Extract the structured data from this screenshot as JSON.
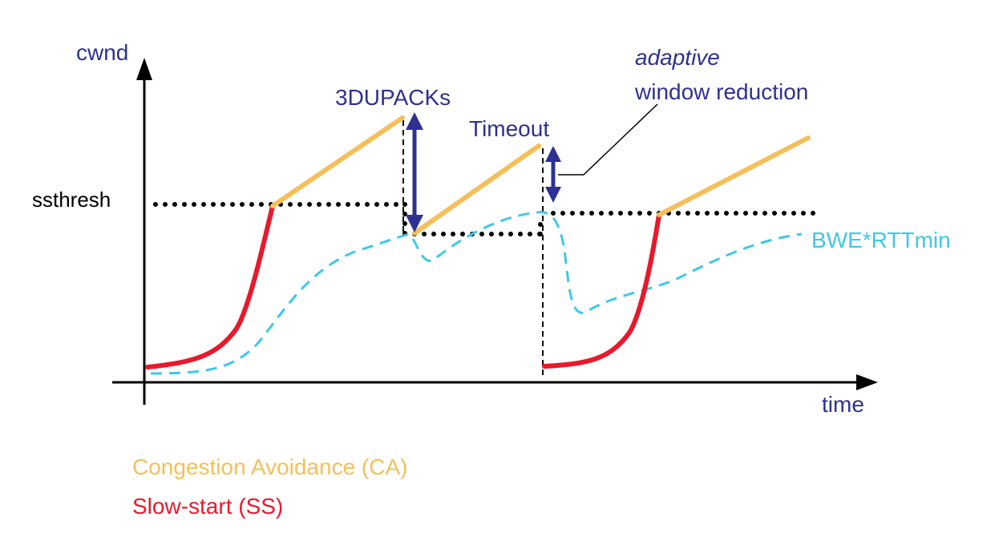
{
  "axes": {
    "y_label": "cwnd",
    "x_label": "time"
  },
  "labels": {
    "ssthresh": "ssthresh",
    "dupacks": "3DUPACKs",
    "timeout": "Timeout",
    "adaptive": "adaptive",
    "window_reduction": "window reduction",
    "bwe": "BWE*RTTmin"
  },
  "legend": {
    "ca": "Congestion Avoidance (CA)",
    "ss": "Slow-start (SS)"
  },
  "colors": {
    "axis": "#000000",
    "text": "#2e3192",
    "ca": "#f5bf5a",
    "ss": "#e8192c",
    "bwe": "#3ec9e8",
    "arrow": "#2e3192",
    "dotted": "#000000"
  }
}
